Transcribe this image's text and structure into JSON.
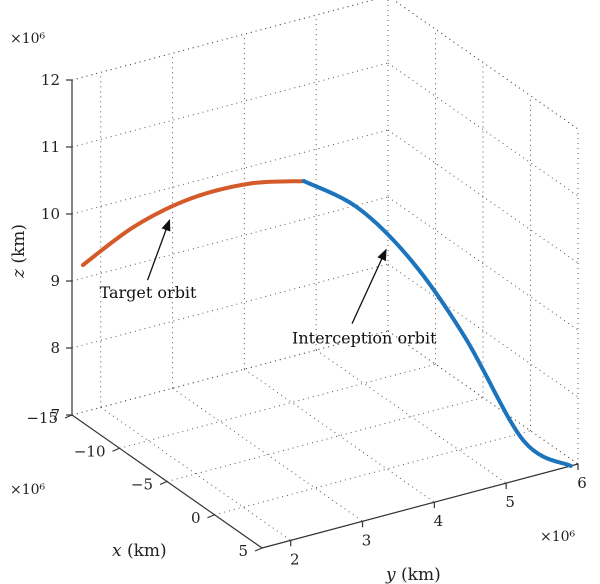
{
  "chart_data": {
    "type": "line",
    "projection": "3d",
    "grid": true,
    "axes": {
      "x": {
        "label_var": "x",
        "label_unit": " (km)",
        "scale": "×10⁶",
        "ticks": [
          -15,
          -10,
          -5,
          0,
          5
        ],
        "tick_labels": [
          "−15",
          "−10",
          "−5",
          "0",
          "5"
        ],
        "range": [
          -15,
          5
        ]
      },
      "y": {
        "label_var": "y",
        "label_unit": " (km)",
        "scale": "×10⁶",
        "ticks": [
          2,
          3,
          4,
          5,
          6
        ],
        "tick_labels": [
          "2",
          "3",
          "4",
          "5",
          "6"
        ],
        "range": [
          1.6,
          6
        ]
      },
      "z": {
        "label_var": "z",
        "label_unit": " (km)",
        "scale": "×10⁶",
        "ticks": [
          7,
          8,
          9,
          10,
          11,
          12
        ],
        "tick_labels": [
          "7",
          "8",
          "9",
          "10",
          "11",
          "12"
        ],
        "range": [
          7,
          12
        ]
      }
    },
    "series": [
      {
        "name": "Target orbit",
        "color": "#d45a29",
        "points": [
          {
            "x": -14.6,
            "y": 1.7,
            "z": 9.25
          },
          {
            "x": -12.2,
            "y": 2.1,
            "z": 9.95
          },
          {
            "x": -9.6,
            "y": 2.55,
            "z": 10.5
          },
          {
            "x": -6.8,
            "y": 3.0,
            "z": 10.87
          },
          {
            "x": -4.2,
            "y": 3.4,
            "z": 11.05
          }
        ]
      },
      {
        "name": "Interception orbit",
        "color": "#1b74bc",
        "points": [
          {
            "x": -4.2,
            "y": 3.4,
            "z": 11.05
          },
          {
            "x": -1.5,
            "y": 3.8,
            "z": 10.8
          },
          {
            "x": 0.8,
            "y": 4.25,
            "z": 10.1
          },
          {
            "x": 2.6,
            "y": 4.75,
            "z": 9.0
          },
          {
            "x": 4.2,
            "y": 5.35,
            "z": 7.45
          },
          {
            "x": 5.0,
            "y": 5.9,
            "z": 7.0
          }
        ]
      }
    ],
    "annotations": [
      {
        "text": "Target orbit",
        "series": "Target orbit"
      },
      {
        "text": "Interception orbit",
        "series": "Interception orbit"
      }
    ]
  }
}
